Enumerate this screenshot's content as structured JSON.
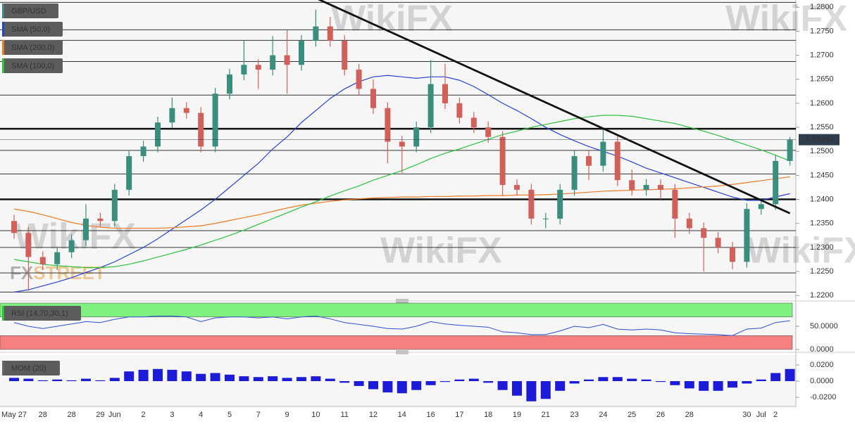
{
  "watermark": "WikiFX",
  "logo": [
    "FX",
    "STREET"
  ],
  "chart_data": [
    {
      "type": "candlestick",
      "name": "GBP/USD",
      "up_color": "#3b8d7e",
      "down_color": "#d2605a",
      "categories": [
        "May 27",
        null,
        "28",
        null,
        "28",
        null,
        "29",
        "Jun",
        null,
        "2",
        null,
        "3",
        null,
        "4",
        null,
        "5",
        null,
        "7",
        null,
        "9",
        null,
        "10",
        null,
        "11",
        null,
        "12",
        null,
        "14",
        null,
        "16",
        null,
        "17",
        null,
        "18",
        null,
        "19",
        null,
        "21",
        null,
        "23",
        null,
        "24",
        null,
        "25",
        null,
        "26",
        null,
        "28",
        null,
        null,
        null,
        "30",
        "Jul",
        "2",
        null
      ],
      "open": [
        1.2355,
        1.233,
        1.228,
        1.2265,
        1.229,
        1.2315,
        1.236,
        1.2355,
        1.242,
        1.249,
        1.251,
        1.256,
        1.259,
        1.258,
        1.251,
        1.262,
        1.266,
        1.268,
        1.267,
        1.27,
        1.268,
        1.273,
        1.276,
        1.273,
        1.267,
        1.263,
        1.259,
        1.252,
        1.251,
        1.255,
        1.264,
        1.26,
        1.257,
        1.255,
        1.253,
        1.243,
        1.242,
        1.236,
        1.236,
        1.242,
        1.249,
        1.247,
        1.252,
        1.244,
        1.242,
        1.243,
        1.242,
        1.236,
        1.234,
        1.232,
        1.23,
        1.227,
        1.238,
        1.239,
        1.248
      ],
      "high": [
        1.2368,
        1.2342,
        1.2292,
        1.2302,
        1.2327,
        1.239,
        1.2372,
        1.2432,
        1.2502,
        1.2522,
        1.2572,
        1.2612,
        1.2602,
        1.2592,
        1.2632,
        1.2672,
        1.273,
        1.2692,
        1.274,
        1.2752,
        1.2742,
        1.2795,
        1.278,
        1.2742,
        1.2682,
        1.265,
        1.2602,
        1.2532,
        1.2562,
        1.269,
        1.2682,
        1.2612,
        1.2582,
        1.2562,
        1.2542,
        1.2442,
        1.2432,
        1.2372,
        1.2432,
        1.2502,
        1.2502,
        1.2545,
        1.2532,
        1.2462,
        1.2442,
        1.2442,
        1.2432,
        1.2372,
        1.2352,
        1.2332,
        1.2312,
        1.2392,
        1.2402,
        1.2492,
        1.253
      ],
      "low": [
        1.2318,
        1.221,
        1.2253,
        1.2253,
        1.2278,
        1.2303,
        1.2343,
        1.2343,
        1.2408,
        1.2478,
        1.2498,
        1.2548,
        1.2568,
        1.2498,
        1.2498,
        1.2608,
        1.2648,
        1.263,
        1.2658,
        1.262,
        1.2668,
        1.2718,
        1.2718,
        1.2658,
        1.2618,
        1.2578,
        1.2475,
        1.2455,
        1.2498,
        1.2538,
        1.2588,
        1.2558,
        1.2538,
        1.2518,
        1.2408,
        1.2408,
        1.2348,
        1.234,
        1.2348,
        1.2408,
        1.244,
        1.2458,
        1.2428,
        1.2408,
        1.2408,
        1.24,
        1.232,
        1.2328,
        1.225,
        1.2288,
        1.2255,
        1.2258,
        1.2368,
        1.2378,
        1.247
      ],
      "close": [
        1.233,
        1.228,
        1.2265,
        1.229,
        1.2315,
        1.236,
        1.2355,
        1.242,
        1.249,
        1.251,
        1.256,
        1.259,
        1.258,
        1.251,
        1.262,
        1.266,
        1.268,
        1.267,
        1.27,
        1.268,
        1.273,
        1.276,
        1.273,
        1.267,
        1.263,
        1.259,
        1.252,
        1.251,
        1.255,
        1.264,
        1.26,
        1.257,
        1.255,
        1.253,
        1.243,
        1.242,
        1.236,
        1.236,
        1.242,
        1.249,
        1.247,
        1.252,
        1.244,
        1.242,
        1.243,
        1.242,
        1.236,
        1.234,
        1.232,
        1.23,
        1.227,
        1.238,
        1.239,
        1.248,
        1.2524
      ],
      "series": [
        {
          "name": "SMA (50,0)",
          "color": "#2742d6",
          "values": [
            1.2207,
            1.2212,
            1.222,
            1.2228,
            1.2237,
            1.2248,
            1.2258,
            1.227,
            1.2285,
            1.23,
            1.2318,
            1.2338,
            1.2358,
            1.2378,
            1.24,
            1.2425,
            1.245,
            1.2475,
            1.2505,
            1.253,
            1.256,
            1.2585,
            1.261,
            1.263,
            1.2645,
            1.2655,
            1.2658,
            1.2655,
            1.2652,
            1.2655,
            1.2655,
            1.2648,
            1.2635,
            1.2618,
            1.26,
            1.2585,
            1.2568,
            1.255,
            1.2535,
            1.2522,
            1.251,
            1.25,
            1.249,
            1.2478,
            1.2465,
            1.2455,
            1.2445,
            1.2435,
            1.2425,
            1.2415,
            1.2405,
            1.2398,
            1.2398,
            1.2405,
            1.2412
          ]
        },
        {
          "name": "SMA (200,0)",
          "color": "#f07a22",
          "values": [
            1.238,
            1.2375,
            1.2368,
            1.236,
            1.2352,
            1.2346,
            1.2342,
            1.234,
            1.234,
            1.234,
            1.234,
            1.2341,
            1.2343,
            1.2345,
            1.235,
            1.2356,
            1.2362,
            1.2368,
            1.2375,
            1.2382,
            1.2388,
            1.2392,
            1.2396,
            1.2399,
            1.2401,
            1.2403,
            1.2404,
            1.2405,
            1.2405,
            1.2406,
            1.2406,
            1.2407,
            1.2407,
            1.2408,
            1.2408,
            1.2409,
            1.2409,
            1.241,
            1.2411,
            1.2413,
            1.2415,
            1.2417,
            1.2418,
            1.2419,
            1.242,
            1.2421,
            1.2422,
            1.2424,
            1.2426,
            1.2428,
            1.2431,
            1.2435,
            1.2439,
            1.2443,
            1.2447
          ]
        },
        {
          "name": "SMA (100,0)",
          "color": "#2cc23a",
          "values": [
            1.2275,
            1.227,
            1.2265,
            1.2262,
            1.226,
            1.2258,
            1.2258,
            1.226,
            1.2265,
            1.2272,
            1.228,
            1.2288,
            1.2296,
            1.2305,
            1.2315,
            1.2325,
            1.2336,
            1.2348,
            1.236,
            1.2372,
            1.2384,
            1.2395,
            1.2407,
            1.2418,
            1.2428,
            1.244,
            1.245,
            1.246,
            1.2472,
            1.2485,
            1.2496,
            1.2505,
            1.2515,
            1.2525,
            1.2535,
            1.2542,
            1.255,
            1.2556,
            1.2562,
            1.2568,
            1.2572,
            1.2575,
            1.2575,
            1.2573,
            1.2568,
            1.2563,
            1.2558,
            1.255,
            1.2542,
            1.2533,
            1.2523,
            1.2513,
            1.2503,
            1.2492,
            1.248
          ]
        }
      ],
      "ylim": [
        1.2193,
        1.2815
      ],
      "yticks": [
        {
          "value": 1.22,
          "label": "1.2200"
        },
        {
          "value": 1.225,
          "label": "1.2250"
        },
        {
          "value": 1.23,
          "label": "1.2300"
        },
        {
          "value": 1.235,
          "label": "1.2350"
        },
        {
          "value": 1.24,
          "label": "1.2400"
        },
        {
          "value": 1.245,
          "label": "1.2450"
        },
        {
          "value": 1.25,
          "label": "1.2500"
        },
        {
          "value": 1.255,
          "label": "1.2550"
        },
        {
          "value": 1.26,
          "label": "1.2600"
        },
        {
          "value": 1.265,
          "label": "1.2650"
        },
        {
          "value": 1.27,
          "label": "1.2700"
        },
        {
          "value": 1.275,
          "label": "1.2750"
        },
        {
          "value": 1.28,
          "label": "1.2800"
        }
      ],
      "levels": [
        1.281,
        1.2753,
        1.2731,
        1.2687,
        1.2617,
        1.2502,
        1.2453,
        1.2335,
        1.23,
        1.2247,
        1.2207
      ],
      "key_levels": [
        1.2547,
        1.24
      ],
      "trendline": {
        "start": 1.2819,
        "end": 1.2371
      },
      "last_price": 1.25243
    },
    {
      "type": "line",
      "title": "RSI (14,70,30,1)",
      "color": "#2b4fd6",
      "overbought": 70,
      "oversold": 30,
      "values": [
        58,
        50,
        45,
        50,
        55,
        60,
        58,
        65,
        70,
        70,
        72,
        72,
        70,
        60,
        68,
        70,
        70,
        68,
        70,
        66,
        70,
        72,
        66,
        58,
        54,
        50,
        45,
        44,
        50,
        60,
        55,
        52,
        50,
        48,
        38,
        36,
        32,
        32,
        40,
        50,
        47,
        54,
        44,
        42,
        44,
        42,
        36,
        34,
        33,
        32,
        30,
        44,
        46,
        58,
        62
      ],
      "ylim": [
        0,
        100
      ],
      "yticks": [
        {
          "value": 0,
          "label": "0.0000"
        },
        {
          "value": 50,
          "label": "50.0000"
        }
      ]
    },
    {
      "type": "bar",
      "title": "MOM (20)",
      "color": "#1c1cd8",
      "values": [
        0.004,
        0.003,
        0.001,
        0.002,
        0.001,
        0.003,
        0.001,
        0.004,
        0.012,
        0.014,
        0.015,
        0.014,
        0.012,
        0.009,
        0.01,
        0.008,
        0.006,
        0.005,
        0.006,
        0.004,
        0.005,
        0.006,
        0.003,
        -0.002,
        -0.006,
        -0.01,
        -0.014,
        -0.015,
        -0.011,
        -0.005,
        -0.001,
        0.002,
        0.003,
        -0.002,
        -0.011,
        -0.018,
        -0.025,
        -0.022,
        -0.012,
        -0.003,
        0.002,
        0.005,
        0.005,
        0.003,
        0.002,
        -0.001,
        -0.005,
        -0.009,
        -0.012,
        -0.012,
        -0.008,
        -0.003,
        0.002,
        0.01,
        0.015
      ],
      "ylim": [
        -0.0313,
        0.0322
      ],
      "yticks": [
        {
          "value": -0.02,
          "label": "-0.0200"
        },
        {
          "value": 0,
          "label": "0.0000"
        },
        {
          "value": 0.02,
          "label": "0.0200"
        }
      ]
    }
  ]
}
